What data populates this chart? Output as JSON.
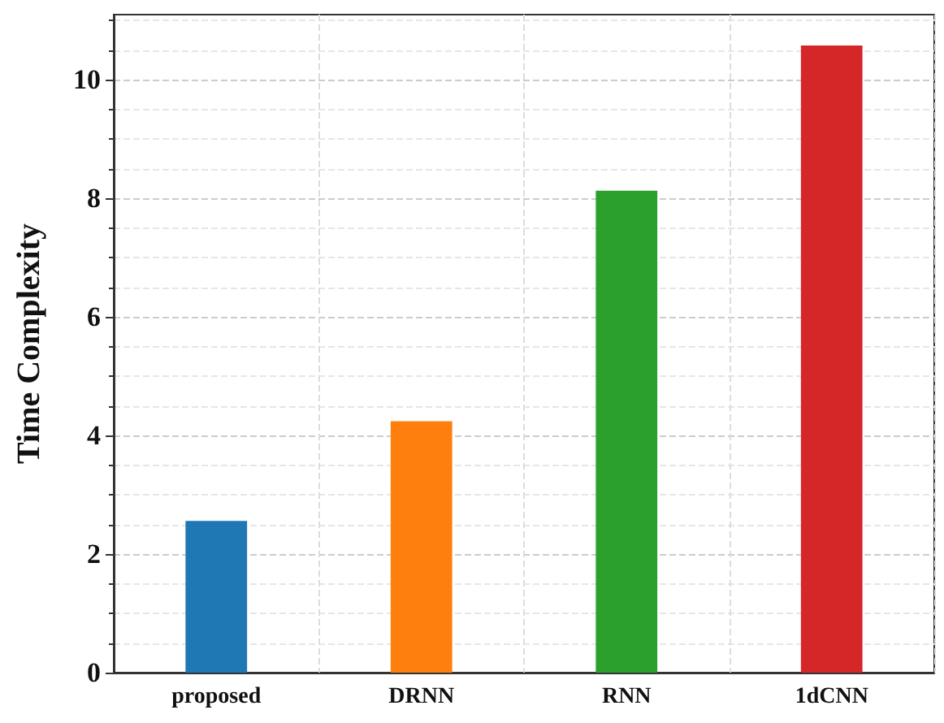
{
  "chart_data": {
    "type": "bar",
    "ylabel": "Time Complexity",
    "categories": [
      "proposed",
      "DRNN",
      "RNN",
      "1dCNN"
    ],
    "values": [
      2.56,
      4.24,
      8.13,
      10.58
    ],
    "colors": [
      "#1f77b4",
      "#ff7f0e",
      "#2ca02c",
      "#d62728"
    ],
    "ylim": [
      0,
      11.1
    ],
    "yticks": [
      0,
      2,
      4,
      6,
      8,
      10
    ],
    "grid": true
  }
}
